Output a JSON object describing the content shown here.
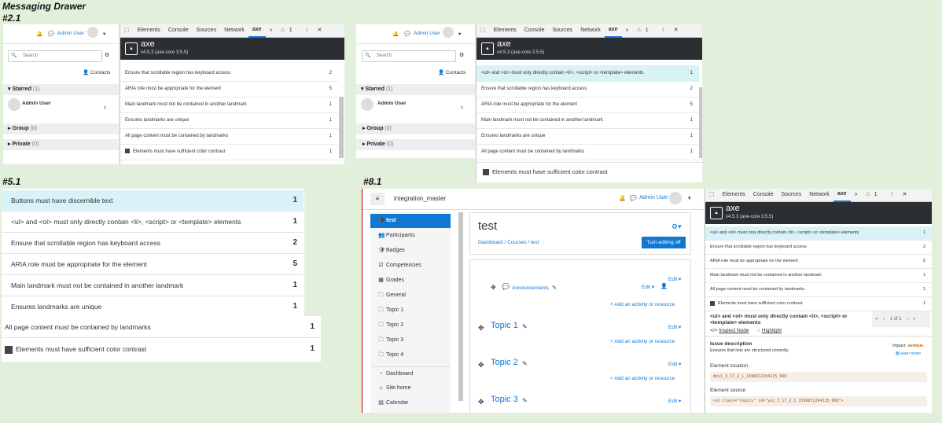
{
  "labels": {
    "title": "Messaging Drawer",
    "s21": "#2.1",
    "s51": "#5.1",
    "s81": "#8.1"
  },
  "moodle": {
    "user": "Admin User",
    "search_placeholder": "Search",
    "contacts": "Contacts",
    "starred": "Starred",
    "starred_count": "(1)",
    "group": "Group",
    "group_count": "(0)",
    "private": "Private",
    "private_count": "(0)",
    "starred_user": "Admin User"
  },
  "devtools": {
    "tabs": [
      "Elements",
      "Console",
      "Sources",
      "Network",
      "axe"
    ],
    "more": "»",
    "warn_count": "1",
    "kebab": "⋮",
    "close": "✕"
  },
  "axe": {
    "name": "axe",
    "version": "v4.5.3 (axe-core 3.5.5)"
  },
  "panel1": {
    "rows": [
      {
        "text": "Ensure that scrollable region has keyboard access",
        "count": "2"
      },
      {
        "text": "ARIA role must be appropriate for the element",
        "count": "5"
      },
      {
        "text": "Main landmark must not be contained in another landmark",
        "count": "1"
      },
      {
        "text": "Ensures landmarks are unique",
        "count": "1"
      },
      {
        "text": "All page content must be contained by landmarks",
        "count": "1"
      },
      {
        "text": "Elements must have sufficient color contrast",
        "count": "1"
      }
    ]
  },
  "panel2": {
    "rows": [
      {
        "text": "<ul> and <ol> must only directly contain <li>, <script> or <template> elements",
        "count": "1"
      },
      {
        "text": "Ensure that scrollable region has keyboard access",
        "count": "2"
      },
      {
        "text": "ARIA role must be appropriate for the element",
        "count": "5"
      },
      {
        "text": "Main landmark must not be contained in another landmark",
        "count": "1"
      },
      {
        "text": "Ensures landmarks are unique",
        "count": "1"
      },
      {
        "text": "All page content must be contained by landmarks",
        "count": "1"
      }
    ],
    "contrast": "Elements must have sufficient color contrast"
  },
  "panel3": {
    "rows": [
      {
        "text": "Buttons must have discernible text",
        "count": "1"
      },
      {
        "text": "<ul> and <ol> must only directly contain <li>, <script> or <template> elements",
        "count": "1"
      },
      {
        "text": "Ensure that scrollable region has keyboard access",
        "count": "2"
      },
      {
        "text": "ARIA role must be appropriate for the element",
        "count": "5"
      },
      {
        "text": "Main landmark must not be contained in another landmark",
        "count": "1"
      },
      {
        "text": "Ensures landmarks are unique",
        "count": "1"
      },
      {
        "text": "All page content must be contained by landmarks",
        "count": "1"
      },
      {
        "text": "Elements must have sufficient color contrast",
        "count": "1"
      }
    ]
  },
  "course": {
    "site": "integration_master",
    "title": "test",
    "breadcrumb": [
      "Dashboard",
      "Courses",
      "test"
    ],
    "edit_btn": "Turn editing off",
    "edit": "Edit",
    "announcements": "Announcements",
    "add_activity": "Add an activity or resource",
    "topics": [
      "Topic 1",
      "Topic 2",
      "Topic 3"
    ],
    "nav": [
      "test",
      "Participants",
      "Badges",
      "Competencies",
      "Grades",
      "General",
      "Topic 1",
      "Topic 2",
      "Topic 3",
      "Topic 4",
      "Dashboard",
      "Site home",
      "Calendar"
    ]
  },
  "panel4": {
    "rows": [
      {
        "text": "<ul> and <ol> must only directly contain <li>, <script> or <template> elements",
        "count": "1"
      },
      {
        "text": "Ensure that scrollable region has keyboard access",
        "count": "2"
      },
      {
        "text": "ARIA role must be appropriate for the element",
        "count": "5"
      },
      {
        "text": "Main landmark must not be contained in another landmark",
        "count": "1"
      },
      {
        "text": "All page content must be contained by landmarks",
        "count": "1"
      },
      {
        "text": "Elements must have sufficient color contrast",
        "count": "1"
      }
    ],
    "detail_title": "<ul> and <ol> must only directly contain <li>, <script> or <template> elements",
    "pager": "1 of 1",
    "inspect": "Inspect Node",
    "highlight": "Highlight",
    "issue_desc": "Issue description",
    "issue_text": "Ensures that lists are structured correctly",
    "impact_lbl": "Impact:",
    "impact": "serious",
    "learn_more": "Learn more",
    "elem_loc": "Element location",
    "loc_val": "#yui_3_17_2_1_1596872264115_668",
    "elem_src": "Element source",
    "src_val": "<ul class=\"topics\" id=\"yui_3_17_2_1_1596872264115_668\">"
  }
}
